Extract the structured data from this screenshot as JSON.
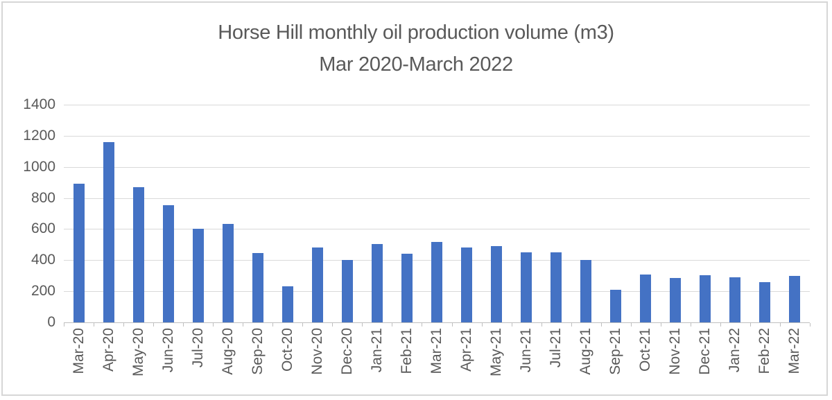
{
  "chart_data": {
    "type": "bar",
    "title": "Horse Hill monthly oil production volume (m3)",
    "subtitle": "Mar 2020-March 2022",
    "categories": [
      "Mar-20",
      "Apr-20",
      "May-20",
      "Jun-20",
      "Jul-20",
      "Aug-20",
      "Sep-20",
      "Oct-20",
      "Nov-20",
      "Dec-20",
      "Jan-21",
      "Feb-21",
      "Mar-21",
      "Apr-21",
      "May-21",
      "Jun-21",
      "Jul-21",
      "Aug-21",
      "Sep-21",
      "Oct-21",
      "Nov-21",
      "Dec-21",
      "Jan-22",
      "Feb-22",
      "Mar-22"
    ],
    "values": [
      890,
      1160,
      870,
      755,
      600,
      635,
      445,
      230,
      483,
      402,
      505,
      442,
      515,
      480,
      492,
      452,
      450,
      400,
      210,
      308,
      286,
      304,
      291,
      257,
      297
    ],
    "xlabel": "",
    "ylabel": "",
    "ylim": [
      0,
      1400
    ],
    "yticks": [
      0,
      200,
      400,
      600,
      800,
      1000,
      1200,
      1400
    ],
    "grid": "horizontal",
    "legend": "none",
    "colors": {
      "bar": "#4472C4",
      "gridline": "#d9d9d9",
      "axis": "#bfbfbf",
      "text": "#595959",
      "frame_border": "#d6d6d6",
      "background": "#ffffff"
    }
  }
}
